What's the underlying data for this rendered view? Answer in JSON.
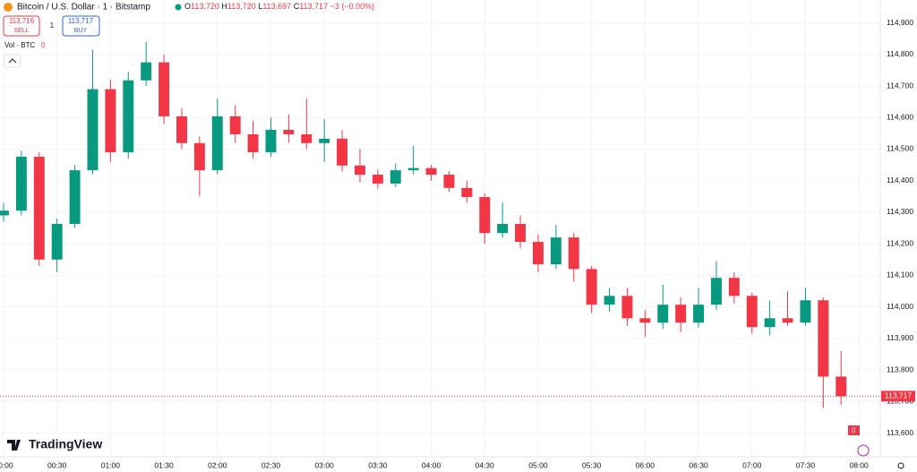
{
  "chart_data": {
    "type": "candlestick",
    "title": "Bitcoin / U.S. Dollar · 1 · Bitstamp",
    "ohlc_header": {
      "open_prefix": "O",
      "open": "113,720",
      "high_prefix": "H",
      "high": "113,720",
      "low_prefix": "L",
      "low": "113,697",
      "close_prefix": "C",
      "close": "113,717",
      "change": "−3 (−0.00%)"
    },
    "sell": {
      "price": "113,716",
      "label": "SELL"
    },
    "spread": "1",
    "buy": {
      "price": "113,717",
      "label": "BUY"
    },
    "volume_label": "Vol · BTC",
    "volume_value": "0",
    "volume_axis_label": "0",
    "brand": "TradingView",
    "last_price": {
      "value": 113717,
      "label": "113,717"
    },
    "up_color": "#089981",
    "down_color": "#f23645",
    "grid": true,
    "x": [
      0,
      10,
      20,
      30,
      40,
      50,
      60,
      70,
      80,
      90,
      100,
      110,
      120,
      130,
      140,
      150,
      160,
      170,
      180,
      190,
      200,
      210,
      220,
      230,
      240,
      250,
      260,
      270,
      280,
      290,
      300,
      310,
      320,
      330,
      340,
      350,
      360,
      370,
      380,
      390,
      400,
      410,
      420,
      430,
      440,
      450,
      460,
      470
    ],
    "open": [
      114290,
      114305,
      114476,
      114150,
      114263,
      114433,
      114690,
      114490,
      114718,
      114775,
      114604,
      114519,
      114433,
      114604,
      114547,
      114490,
      114561,
      114547,
      114519,
      114533,
      114448,
      114419,
      114391,
      114433,
      114440,
      114419,
      114377,
      114348,
      114234,
      114263,
      114206,
      114135,
      114220,
      114120,
      114007,
      114035,
      113964,
      113950,
      114007,
      113950,
      114007,
      114092,
      114035,
      113936,
      113964,
      113950,
      114021,
      113779
    ],
    "high": [
      114330,
      114495,
      114490,
      114280,
      114450,
      114815,
      114720,
      114745,
      114840,
      114800,
      114630,
      114540,
      114660,
      114640,
      114590,
      114600,
      114610,
      114660,
      114595,
      114560,
      114500,
      114435,
      114455,
      114510,
      114450,
      114430,
      114400,
      114360,
      114330,
      114290,
      114230,
      114260,
      114235,
      114130,
      114060,
      114060,
      113990,
      114070,
      114030,
      114060,
      114145,
      114110,
      114045,
      114020,
      114050,
      114060,
      114030,
      113860
    ],
    "low": [
      114270,
      114290,
      114130,
      114110,
      114250,
      114420,
      114460,
      114470,
      114700,
      114580,
      114500,
      114350,
      114420,
      114520,
      114470,
      114475,
      114520,
      114500,
      114460,
      114430,
      114395,
      114375,
      114380,
      114420,
      114400,
      114365,
      114330,
      114200,
      114220,
      114185,
      114110,
      114120,
      114080,
      113980,
      113985,
      113940,
      113905,
      113930,
      113920,
      113935,
      113990,
      114010,
      113915,
      113910,
      113940,
      113940,
      113680,
      113690
    ],
    "close": [
      114305,
      114476,
      114150,
      114263,
      114433,
      114690,
      114490,
      114718,
      114775,
      114604,
      114519,
      114433,
      114604,
      114547,
      114490,
      114561,
      114547,
      114519,
      114533,
      114448,
      114419,
      114391,
      114433,
      114440,
      114419,
      114377,
      114348,
      114234,
      114263,
      114206,
      114135,
      114220,
      114120,
      114007,
      114035,
      113964,
      113950,
      114007,
      113950,
      114007,
      114092,
      114035,
      113936,
      113964,
      113950,
      114021,
      113779,
      113717
    ],
    "xlim": [
      -1,
      492
    ],
    "xticks": [
      {
        "value": 0,
        "label": "00:00"
      },
      {
        "value": 30,
        "label": "00:30"
      },
      {
        "value": 60,
        "label": "01:00"
      },
      {
        "value": 90,
        "label": "01:30"
      },
      {
        "value": 120,
        "label": "02:00"
      },
      {
        "value": 150,
        "label": "02:30"
      },
      {
        "value": 180,
        "label": "03:00"
      },
      {
        "value": 210,
        "label": "03:30"
      },
      {
        "value": 240,
        "label": "04:00"
      },
      {
        "value": 270,
        "label": "04:30"
      },
      {
        "value": 300,
        "label": "05:00"
      },
      {
        "value": 330,
        "label": "05:30"
      },
      {
        "value": 360,
        "label": "06:00"
      },
      {
        "value": 390,
        "label": "06:30"
      },
      {
        "value": 420,
        "label": "07:00"
      },
      {
        "value": 450,
        "label": "07:30"
      },
      {
        "value": 480,
        "label": "08:00"
      }
    ],
    "ylim": [
      113525,
      114930
    ],
    "yticks": [
      {
        "value": 113600,
        "label": "113,600"
      },
      {
        "value": 113700,
        "label": "113,700"
      },
      {
        "value": 113800,
        "label": "113,800"
      },
      {
        "value": 113900,
        "label": "113,900"
      },
      {
        "value": 114000,
        "label": "114,000"
      },
      {
        "value": 114100,
        "label": "114,100"
      },
      {
        "value": 114200,
        "label": "114,200"
      },
      {
        "value": 114300,
        "label": "114,300"
      },
      {
        "value": 114400,
        "label": "114,400"
      },
      {
        "value": 114500,
        "label": "114,500"
      },
      {
        "value": 114600,
        "label": "114,600"
      },
      {
        "value": 114700,
        "label": "114,700"
      },
      {
        "value": 114800,
        "label": "114,800"
      },
      {
        "value": 114900,
        "label": "114,900"
      }
    ]
  }
}
